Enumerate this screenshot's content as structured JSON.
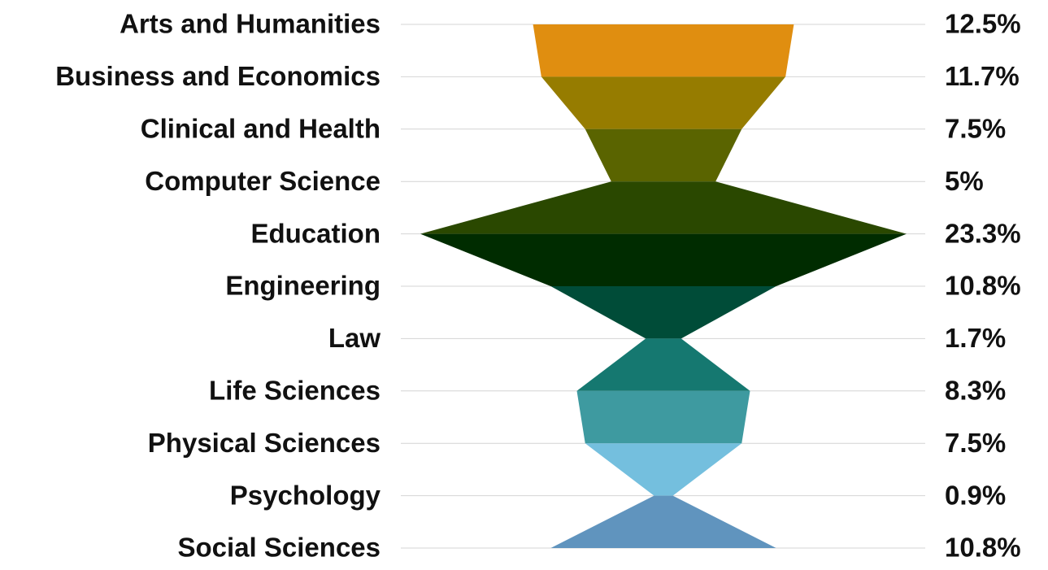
{
  "chart_data": {
    "type": "funnel",
    "categories": [
      "Arts and Humanities",
      "Business and Economics",
      "Clinical and Health",
      "Computer Science",
      "Education",
      "Engineering",
      "Law",
      "Life Sciences",
      "Physical Sciences",
      "Psychology",
      "Social Sciences"
    ],
    "values": [
      12.5,
      11.7,
      7.5,
      5,
      23.3,
      10.8,
      1.7,
      8.3,
      7.5,
      0.9,
      10.8
    ],
    "value_labels": [
      "12.5%",
      "11.7%",
      "7.5%",
      "5%",
      "23.3%",
      "10.8%",
      "1.7%",
      "8.3%",
      "7.5%",
      "0.9%",
      "10.8%"
    ],
    "colors": [
      "#e08e10",
      "#967c00",
      "#5a6400",
      "#2a4800",
      "#002c00",
      "#004c38",
      "#157870",
      "#3e9aa0",
      "#74bfde",
      "#6094be"
    ],
    "grid": true
  }
}
